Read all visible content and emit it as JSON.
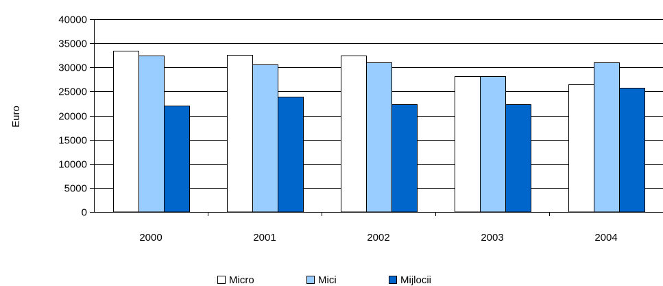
{
  "chart_data": {
    "type": "bar",
    "title": "",
    "xlabel": "",
    "ylabel": "Euro",
    "ylim": [
      0,
      40000
    ],
    "yticks": [
      0,
      5000,
      10000,
      15000,
      20000,
      25000,
      30000,
      35000,
      40000
    ],
    "grid": true,
    "legend_position": "bottom",
    "categories": [
      "2000",
      "2001",
      "2002",
      "2003",
      "2004"
    ],
    "series": [
      {
        "name": "Micro",
        "color": "#ffffff",
        "values": [
          33500,
          32600,
          32400,
          28200,
          26500
        ]
      },
      {
        "name": "Mici",
        "color": "#99ccff",
        "values": [
          32400,
          30600,
          31000,
          28200,
          31000
        ]
      },
      {
        "name": "Mijlocii",
        "color": "#0066cc",
        "values": [
          22100,
          23900,
          22400,
          22400,
          25800
        ]
      }
    ]
  }
}
